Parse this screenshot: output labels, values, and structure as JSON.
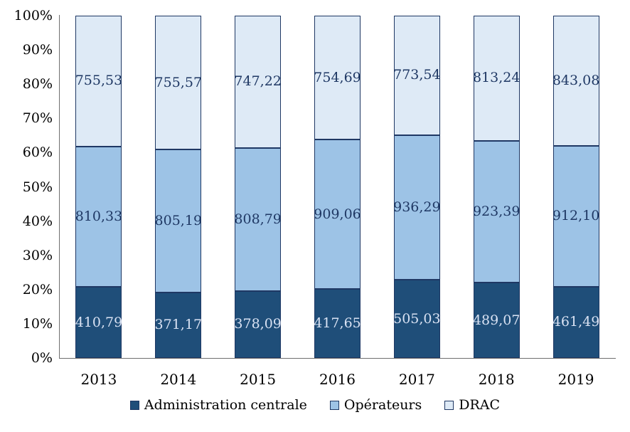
{
  "chart_data": {
    "type": "bar",
    "variant": "stacked-100-percent",
    "title": "",
    "xlabel": "",
    "ylabel": "",
    "grid": false,
    "categories": [
      "2013",
      "2014",
      "2015",
      "2016",
      "2017",
      "2018",
      "2019"
    ],
    "series": [
      {
        "name": "Administration centrale",
        "color": "#1F4E79",
        "label_color": "#D9E2F3",
        "values": [
          410.79,
          371.17,
          378.09,
          417.65,
          505.03,
          489.07,
          461.49
        ],
        "labels": [
          "410,79",
          "371,17",
          "378,09",
          "417,65",
          "505,03",
          "489,07",
          "461,49"
        ]
      },
      {
        "name": "Opérateurs",
        "color": "#9DC3E6",
        "label_color": "#1F3864",
        "values": [
          810.33,
          805.19,
          808.79,
          909.06,
          936.29,
          923.39,
          912.1
        ],
        "labels": [
          "810,33",
          "805,19",
          "808,79",
          "909,06",
          "936,29",
          "923,39",
          "912,10"
        ]
      },
      {
        "name": "DRAC",
        "color": "#DEEAF6",
        "label_color": "#1F3864",
        "values": [
          755.53,
          755.57,
          747.22,
          754.69,
          773.54,
          813.24,
          843.08
        ],
        "labels": [
          "755,53",
          "755,57",
          "747,22",
          "754,69",
          "773,54",
          "813,24",
          "843,08"
        ]
      }
    ],
    "y_axis": {
      "min": 0,
      "max": 100,
      "tick_labels": [
        "0%",
        "10%",
        "20%",
        "30%",
        "40%",
        "50%",
        "60%",
        "70%",
        "80%",
        "90%",
        "100%"
      ]
    },
    "legend": {
      "position": "bottom",
      "entries": [
        "Administration centrale",
        "Opérateurs",
        "DRAC"
      ]
    },
    "colors": {
      "segment_border": "#1F3864",
      "axis_line": "#6e6e6e",
      "axis_text": "#000000"
    }
  }
}
